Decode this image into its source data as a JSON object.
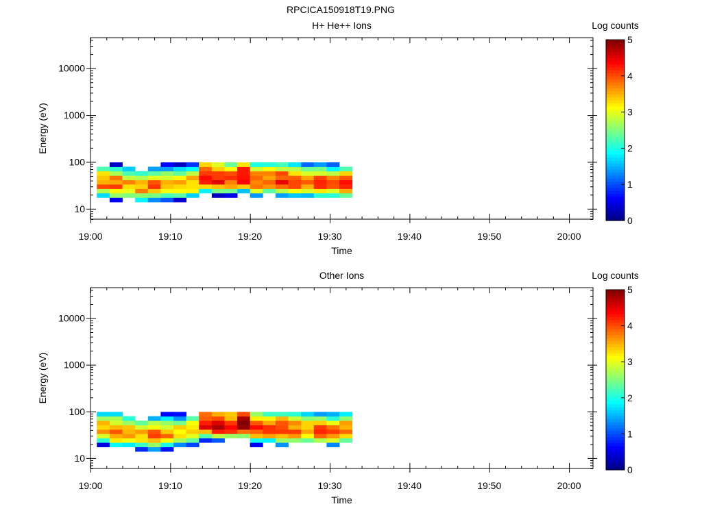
{
  "figure_title": "RPCICA150918T19.PNG",
  "chart_data": [
    {
      "type": "heatmap",
      "title": "H+ He++ Ions",
      "xlabel": "Time",
      "ylabel": "Energy (eV)",
      "x_ticks": [
        "19:00",
        "19:10",
        "19:20",
        "19:30",
        "19:40",
        "19:50",
        "20:00"
      ],
      "x_range_minutes": [
        0,
        63
      ],
      "y_scale": "log",
      "y_ticks": [
        "10",
        "100",
        "1000",
        "10000"
      ],
      "y_range": [
        6,
        45000
      ],
      "colorbar": {
        "label": "Log counts",
        "ticks": [
          "0",
          "1",
          "2",
          "3",
          "4",
          "5"
        ],
        "range": [
          0,
          5
        ]
      },
      "data_extent_minutes": [
        0.8,
        32.8
      ],
      "energy_bins": [
        8,
        10,
        12.5,
        15.5,
        19.5,
        24,
        30,
        37,
        46,
        57,
        71,
        88
      ],
      "time_bins": [
        1.6,
        3.2,
        4.8,
        6.4,
        8.0,
        9.6,
        11.2,
        12.8,
        14.4,
        16.0,
        17.6,
        19.2,
        20.8,
        22.4,
        24.0,
        25.6,
        27.2,
        28.8,
        30.4,
        32.0
      ],
      "peak_log_counts": [
        3.8,
        3.9,
        3.6,
        3.7,
        3.9,
        3.7,
        3.5,
        3.6,
        4.3,
        4.4,
        4.1,
        4.5,
        4.0,
        3.9,
        4.2,
        4.0,
        3.8,
        4.0,
        3.9,
        4.0
      ],
      "peak_energy_ev": [
        34,
        32,
        30,
        28,
        30,
        31,
        32,
        34,
        46,
        44,
        42,
        48,
        38,
        40,
        38,
        36,
        35,
        34,
        33,
        34
      ]
    },
    {
      "type": "heatmap",
      "title": "Other Ions",
      "xlabel": "Time",
      "ylabel": "Energy (eV)",
      "x_ticks": [
        "19:00",
        "19:10",
        "19:20",
        "19:30",
        "19:40",
        "19:50",
        "20:00"
      ],
      "x_range_minutes": [
        0,
        63
      ],
      "y_scale": "log",
      "y_ticks": [
        "10",
        "100",
        "1000",
        "10000"
      ],
      "y_range": [
        6,
        45000
      ],
      "colorbar": {
        "label": "Log counts",
        "ticks": [
          "0",
          "1",
          "2",
          "3",
          "4",
          "5"
        ],
        "range": [
          0,
          5
        ]
      },
      "data_extent_minutes": [
        0.8,
        32.8
      ],
      "energy_bins": [
        8,
        10,
        12.5,
        15.5,
        19.5,
        24,
        30,
        37,
        46,
        57,
        71,
        88
      ],
      "time_bins": [
        1.6,
        3.2,
        4.8,
        6.4,
        8.0,
        9.6,
        11.2,
        12.8,
        14.4,
        16.0,
        17.6,
        19.2,
        20.8,
        22.4,
        24.0,
        25.6,
        27.2,
        28.8,
        30.4,
        32.0
      ],
      "peak_log_counts": [
        3.7,
        3.9,
        3.5,
        3.6,
        3.8,
        3.6,
        3.4,
        3.5,
        4.4,
        4.6,
        4.3,
        4.8,
        4.1,
        4.0,
        4.2,
        3.9,
        3.8,
        3.9,
        3.8,
        3.9
      ],
      "peak_energy_ev": [
        40,
        36,
        34,
        30,
        30,
        32,
        34,
        36,
        52,
        50,
        48,
        54,
        42,
        42,
        40,
        40,
        38,
        38,
        36,
        38
      ]
    }
  ]
}
